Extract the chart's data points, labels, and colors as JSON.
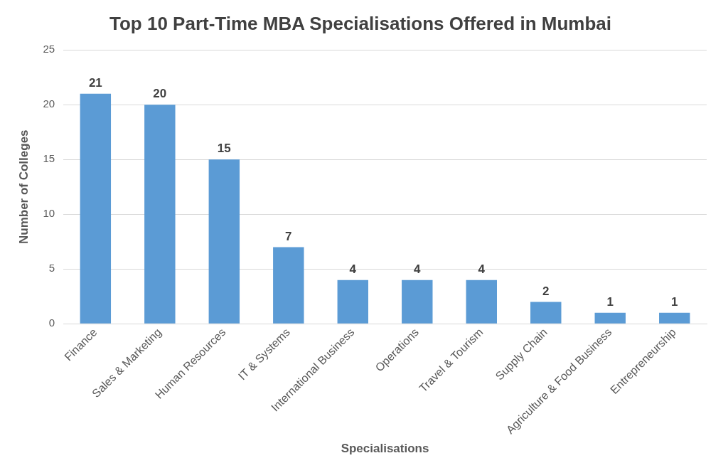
{
  "chart_data": {
    "type": "bar",
    "title": "Top 10 Part-Time MBA Specialisations Offered in Mumbai",
    "xlabel": "Specialisations",
    "ylabel": "Number of Colleges",
    "categories": [
      "Finance",
      "Sales & Marketing",
      "Human Resources",
      "IT & Systems",
      "International Business",
      "Operations",
      "Travel & Tourism",
      "Supply Chain",
      "Agriculture & Food Business",
      "Entrepreneurship"
    ],
    "values": [
      21,
      20,
      15,
      7,
      4,
      4,
      4,
      2,
      1,
      1
    ],
    "color": "#5b9bd5",
    "ylim": [
      0,
      25
    ],
    "yticks": [
      0,
      5,
      10,
      15,
      20,
      25
    ],
    "grid": "y",
    "data_labels": true,
    "legend": false
  }
}
